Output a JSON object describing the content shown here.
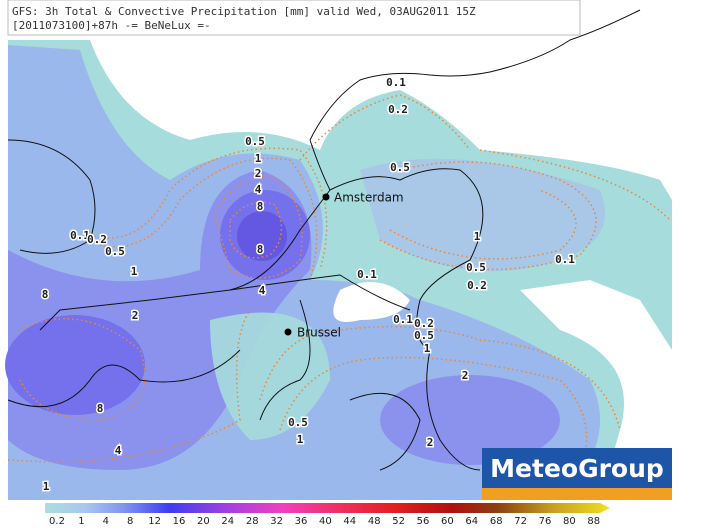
{
  "header": {
    "lines": [
      "GFS: 3h Total & Convective Precipitation [mm] valid Wed, 03AUG2011 15Z",
      "[2011073100]+87h -= BeNeLux =-"
    ]
  },
  "cities": [
    "Amsterdam",
    "Brussel"
  ],
  "contour_labels": [
    "0.1",
    "0.2",
    "0.5",
    "1",
    "2",
    "4",
    "8",
    "8",
    "0.5",
    "1",
    "0.5",
    "0.2",
    "0.1",
    "0.1",
    "0.2",
    "0.5",
    "1",
    "4",
    "8",
    "2",
    "0.1",
    "0.1",
    "0.2",
    "0.5",
    "1",
    "2",
    "8",
    "4",
    "0.5",
    "1",
    "2",
    "1"
  ],
  "legend": {
    "labels": [
      "0.2",
      "1",
      "4",
      "8",
      "12",
      "16",
      "20",
      "24",
      "28",
      "32",
      "36",
      "40",
      "44",
      "48",
      "52",
      "56",
      "60",
      "64",
      "68",
      "72",
      "76",
      "80",
      "88"
    ]
  },
  "logo": "MeteoGroup"
}
